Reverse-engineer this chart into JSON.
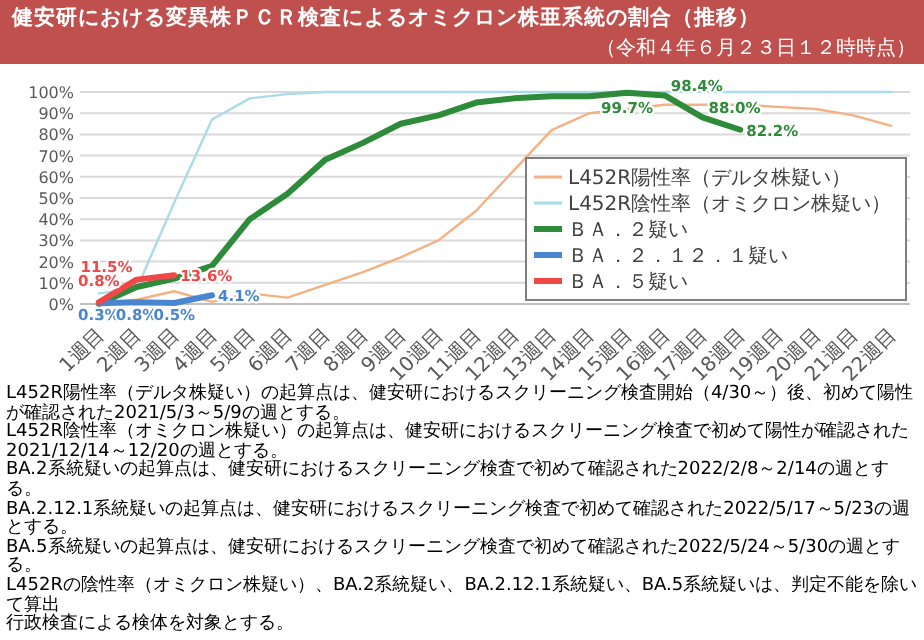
{
  "chart_data": {
    "type": "line",
    "title": "健安研における変異株ＰＣＲ検査によるオミクロン株亜系統の割合（推移）",
    "subtitle": "（令和４年６月２３日１２時時点）",
    "categories": [
      "1週目",
      "2週目",
      "3週目",
      "4週目",
      "5週目",
      "6週目",
      "7週目",
      "8週目",
      "9週目",
      "10週目",
      "11週目",
      "12週目",
      "13週目",
      "14週目",
      "15週目",
      "16週目",
      "17週目",
      "18週目",
      "19週目",
      "20週目",
      "21週目",
      "22週目"
    ],
    "series": [
      {
        "name": "L452R陽性率（デルタ株疑い）",
        "color": "#f4b183",
        "values": [
          0,
          2,
          6,
          1,
          5,
          3,
          9,
          15,
          22,
          30,
          44,
          63,
          82,
          90,
          92,
          94,
          94,
          94,
          93,
          92,
          89,
          84
        ]
      },
      {
        "name": "L452R陰性率（オミクロン株疑い）",
        "color": "#a9dbea",
        "values": [
          5,
          7,
          48,
          87,
          97,
          99,
          100,
          100,
          100,
          100,
          100,
          100,
          100,
          100,
          100,
          100,
          100,
          100,
          100,
          100,
          100,
          100
        ]
      },
      {
        "name": "ＢＡ．２疑い",
        "color": "#2e8b3a",
        "values": [
          0,
          8,
          12,
          18,
          40,
          52,
          68,
          76,
          85,
          89,
          95,
          97,
          98,
          98,
          99.7,
          98.4,
          88.0,
          82.2,
          null,
          null,
          null,
          null
        ],
        "value_labels": [
          null,
          null,
          null,
          null,
          null,
          null,
          null,
          null,
          null,
          null,
          null,
          null,
          null,
          null,
          "99.7%",
          "98.4%",
          "88.0%",
          "82.2%",
          null,
          null,
          null,
          null
        ]
      },
      {
        "name": "ＢＡ．２．１２．１疑い",
        "color": "#4a86d0",
        "values": [
          0.3,
          0.8,
          0.5,
          4.1,
          null,
          null,
          null,
          null,
          null,
          null,
          null,
          null,
          null,
          null,
          null,
          null,
          null,
          null,
          null,
          null,
          null,
          null
        ],
        "value_labels": [
          "0.3%",
          "0.8%",
          "0.5%",
          "4.1%",
          null,
          null,
          null,
          null,
          null,
          null,
          null,
          null,
          null,
          null,
          null,
          null,
          null,
          null,
          null,
          null,
          null,
          null
        ]
      },
      {
        "name": "ＢＡ．５疑い",
        "color": "#f04848",
        "values": [
          0.8,
          11.5,
          13.6,
          null,
          null,
          null,
          null,
          null,
          null,
          null,
          null,
          null,
          null,
          null,
          null,
          null,
          null,
          null,
          null,
          null,
          null,
          null
        ],
        "value_labels": [
          "0.8%",
          "11.5%",
          "13.6%",
          null,
          null,
          null,
          null,
          null,
          null,
          null,
          null,
          null,
          null,
          null,
          null,
          null,
          null,
          null,
          null,
          null,
          null,
          null
        ]
      }
    ],
    "ylim": [
      0,
      100
    ],
    "yticks": [
      {
        "value": 0,
        "label": "0%"
      },
      {
        "value": 10,
        "label": "10%"
      },
      {
        "value": 20,
        "label": "20%"
      },
      {
        "value": 30,
        "label": "30%"
      },
      {
        "value": 40,
        "label": "40%"
      },
      {
        "value": 50,
        "label": "50%"
      },
      {
        "value": 60,
        "label": "60%"
      },
      {
        "value": 70,
        "label": "70%"
      },
      {
        "value": 80,
        "label": "80%"
      },
      {
        "value": 90,
        "label": "90%"
      },
      {
        "value": 100,
        "label": "100%"
      }
    ],
    "grid": "y",
    "legend": "bottom right",
    "marker": "none",
    "line_style": "solid",
    "annotations": [
      "L452R陽性率（デルタ株疑い）の起算点は、健安研におけるスクリーニング検査開始（4/30～）後、初めて陽性が確認された2021/5/3～5/9の週とする。",
      "L452R陰性率（オミクロン株疑い）の起算点は、健安研におけるスクリーニング検査で初めて陽性が確認された2021/12/14～12/20の週とする。",
      "BA.2系統疑いの起算点は、健安研におけるスクリーニング検査で初めて確認された2022/2/8～2/14の週とする。",
      "BA.2.12.1系統疑いの起算点は、健安研におけるスクリーニング検査で初めて確認された2022/5/17～5/23の週とする。",
      "BA.5系統疑いの起算点は、健安研におけるスクリーニング検査で初めて確認された2022/5/24～5/30の週とする。",
      "L452Rの陰性率（オミクロン株疑い）、BA.2系統疑い、BA.2.12.1系統疑い、BA.5系統疑いは、判定不能を除いて算出",
      "行政検査による検体を対象とする。"
    ]
  }
}
